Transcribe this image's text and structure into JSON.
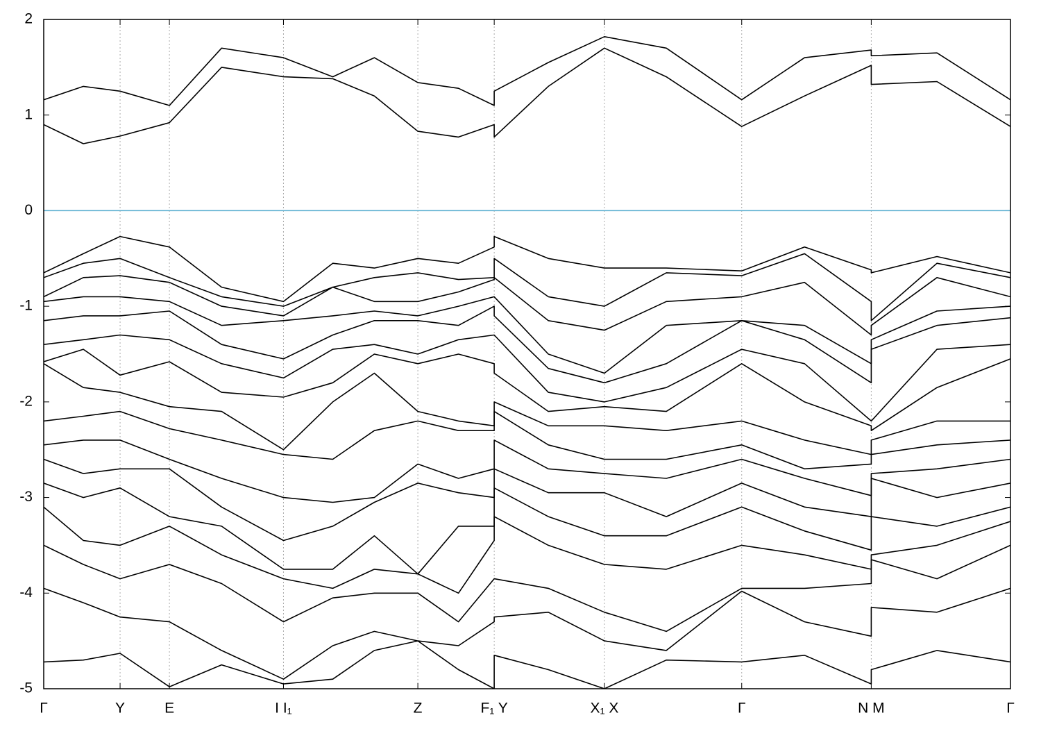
{
  "chart_data": {
    "type": "line",
    "x": [
      0,
      0.41,
      0.79,
      1.3,
      1.84,
      2.48,
      2.99,
      3.42,
      3.87,
      4.29,
      4.66,
      4.66,
      5.22,
      5.8,
      6.44,
      7.22,
      7.87,
      8.56,
      8.56,
      9.24,
      10
    ],
    "xlim": [
      0,
      10
    ],
    "xticks": [
      {
        "value": 0,
        "label": "Γ"
      },
      {
        "value": 0.79,
        "label": "Y"
      },
      {
        "value": 1.3,
        "label": "E"
      },
      {
        "value": 2.48,
        "label": "I I₁"
      },
      {
        "value": 3.87,
        "label": "Z"
      },
      {
        "value": 4.66,
        "label": "F₁ Y"
      },
      {
        "value": 5.8,
        "label": "X₁ X"
      },
      {
        "value": 7.22,
        "label": "Γ"
      },
      {
        "value": 8.56,
        "label": "N M"
      },
      {
        "value": 10,
        "label": "Γ"
      }
    ],
    "ylim": [
      -5,
      2
    ],
    "yticks": [
      -5,
      -4,
      -3,
      -2,
      -1,
      0,
      1,
      2
    ],
    "grid": true,
    "fermi_level": 0,
    "fermi_color": "#5aaed0",
    "series": [
      {
        "color": "#000000",
        "values": [
          0.9,
          0.7,
          0.78,
          0.92,
          1.5,
          1.4,
          1.38,
          1.2,
          0.83,
          0.77,
          0.9,
          0.77,
          1.3,
          1.7,
          1.4,
          0.88,
          1.2,
          1.52,
          1.32,
          1.35,
          0.88
        ]
      },
      {
        "color": "#000000",
        "values": [
          1.16,
          1.3,
          1.25,
          1.1,
          1.7,
          1.6,
          1.4,
          1.6,
          1.34,
          1.28,
          1.1,
          1.25,
          1.55,
          1.82,
          1.7,
          1.16,
          1.6,
          1.68,
          1.62,
          1.65,
          1.16
        ]
      },
      {
        "color": "#000000",
        "values": [
          -0.65,
          -0.45,
          -0.27,
          -0.38,
          -0.8,
          -0.95,
          -0.55,
          -0.6,
          -0.5,
          -0.55,
          -0.38,
          -0.27,
          -0.5,
          -0.6,
          -0.6,
          -0.63,
          -0.38,
          -0.62,
          -0.65,
          -0.48,
          -0.65
        ]
      },
      {
        "color": "#000000",
        "values": [
          -0.7,
          -0.55,
          -0.5,
          -0.7,
          -0.9,
          -1.0,
          -0.8,
          -0.7,
          -0.65,
          -0.72,
          -0.7,
          -0.5,
          -0.9,
          -1.0,
          -0.65,
          -0.68,
          -0.45,
          -0.95,
          -1.15,
          -0.55,
          -0.7
        ]
      },
      {
        "color": "#000000",
        "values": [
          -0.9,
          -0.7,
          -0.68,
          -0.75,
          -1.0,
          -1.1,
          -0.8,
          -0.95,
          -0.95,
          -0.85,
          -0.72,
          -0.7,
          -1.15,
          -1.25,
          -0.95,
          -0.9,
          -0.75,
          -1.3,
          -1.2,
          -0.7,
          -0.9
        ]
      },
      {
        "color": "#000000",
        "values": [
          -0.95,
          -0.9,
          -0.9,
          -0.95,
          -1.2,
          -1.15,
          -1.1,
          -1.05,
          -1.1,
          -1.0,
          -0.9,
          -0.9,
          -1.5,
          -1.7,
          -1.2,
          -1.15,
          -1.2,
          -1.6,
          -1.35,
          -1.05,
          -1.0
        ]
      },
      {
        "color": "#000000",
        "values": [
          -1.15,
          -1.1,
          -1.1,
          -1.05,
          -1.4,
          -1.55,
          -1.3,
          -1.15,
          -1.15,
          -1.2,
          -1.0,
          -1.1,
          -1.65,
          -1.8,
          -1.6,
          -1.15,
          -1.35,
          -1.8,
          -1.45,
          -1.2,
          -1.12
        ]
      },
      {
        "color": "#000000",
        "values": [
          -1.4,
          -1.35,
          -1.3,
          -1.35,
          -1.6,
          -1.75,
          -1.45,
          -1.4,
          -1.5,
          -1.35,
          -1.3,
          -1.3,
          -1.9,
          -2.0,
          -1.85,
          -1.45,
          -1.6,
          -2.2,
          -2.2,
          -1.45,
          -1.4
        ]
      },
      {
        "color": "#000000",
        "values": [
          -1.58,
          -1.45,
          -1.72,
          -1.58,
          -1.9,
          -1.95,
          -1.8,
          -1.5,
          -1.6,
          -1.5,
          -1.6,
          -1.7,
          -2.1,
          -2.05,
          -2.1,
          -1.6,
          -2.0,
          -2.25,
          -2.3,
          -1.85,
          -1.55
        ]
      },
      {
        "color": "#000000",
        "values": [
          -1.6,
          -1.85,
          -1.9,
          -2.05,
          -2.1,
          -2.5,
          -2.0,
          -1.7,
          -2.1,
          -2.2,
          -2.25,
          -2.0,
          -2.25,
          -2.25,
          -2.3,
          -2.2,
          -2.4,
          -2.55,
          -2.4,
          -2.2,
          -2.2
        ]
      },
      {
        "color": "#000000",
        "values": [
          -2.2,
          -2.15,
          -2.1,
          -2.28,
          -2.4,
          -2.55,
          -2.6,
          -2.3,
          -2.2,
          -2.3,
          -2.3,
          -2.1,
          -2.45,
          -2.6,
          -2.6,
          -2.45,
          -2.7,
          -2.65,
          -2.55,
          -2.45,
          -2.4
        ]
      },
      {
        "color": "#000000",
        "values": [
          -2.45,
          -2.4,
          -2.4,
          -2.6,
          -2.8,
          -3.0,
          -3.05,
          -3.0,
          -2.65,
          -2.8,
          -2.7,
          -2.4,
          -2.7,
          -2.75,
          -2.8,
          -2.6,
          -2.8,
          -2.98,
          -2.75,
          -2.7,
          -2.6
        ]
      },
      {
        "color": "#000000",
        "values": [
          -2.6,
          -2.75,
          -2.7,
          -2.7,
          -3.1,
          -3.45,
          -3.3,
          -3.05,
          -2.85,
          -2.95,
          -3.0,
          -2.7,
          -2.95,
          -2.95,
          -3.2,
          -2.85,
          -3.1,
          -3.2,
          -2.8,
          -3.0,
          -2.85
        ]
      },
      {
        "color": "#000000",
        "values": [
          -2.85,
          -3.0,
          -2.9,
          -3.2,
          -3.3,
          -3.75,
          -3.75,
          -3.4,
          -3.8,
          -3.3,
          -3.3,
          -2.9,
          -3.2,
          -3.4,
          -3.4,
          -3.1,
          -3.35,
          -3.55,
          -3.2,
          -3.3,
          -3.1
        ]
      },
      {
        "color": "#000000",
        "values": [
          -3.1,
          -3.45,
          -3.5,
          -3.3,
          -3.6,
          -3.85,
          -3.95,
          -3.75,
          -3.8,
          -4.0,
          -3.45,
          -3.2,
          -3.5,
          -3.7,
          -3.75,
          -3.5,
          -3.6,
          -3.75,
          -3.6,
          -3.5,
          -3.25
        ]
      },
      {
        "color": "#000000",
        "values": [
          -3.5,
          -3.7,
          -3.85,
          -3.7,
          -3.9,
          -4.3,
          -4.05,
          -4.0,
          -4.0,
          -4.3,
          -3.85,
          -3.85,
          -3.95,
          -4.2,
          -4.4,
          -3.95,
          -3.95,
          -3.9,
          -3.65,
          -3.85,
          -3.5
        ]
      },
      {
        "color": "#000000",
        "values": [
          -3.95,
          -4.1,
          -4.25,
          -4.3,
          -4.6,
          -4.9,
          -4.55,
          -4.4,
          -4.5,
          -4.55,
          -4.3,
          -4.25,
          -4.2,
          -4.5,
          -4.6,
          -3.98,
          -4.3,
          -4.45,
          -4.15,
          -4.2,
          -3.95
        ]
      },
      {
        "color": "#000000",
        "values": [
          -4.72,
          -4.7,
          -4.63,
          -4.98,
          -4.75,
          -4.95,
          -4.9,
          -4.6,
          -4.5,
          -4.8,
          -5.0,
          -4.65,
          -4.8,
          -5.0,
          -4.7,
          -4.72,
          -4.65,
          -4.95,
          -4.8,
          -4.6,
          -4.72
        ]
      }
    ]
  }
}
